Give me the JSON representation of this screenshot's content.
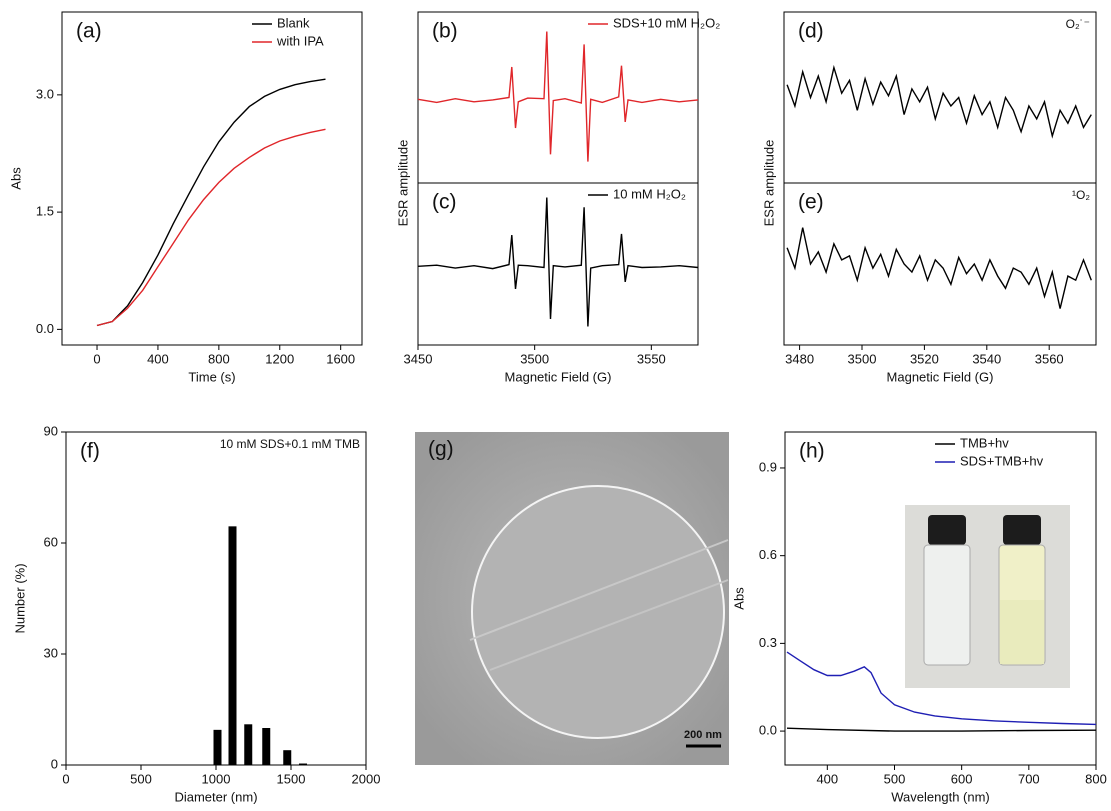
{
  "chart_data": [
    {
      "type": "line",
      "panel": "(a)",
      "xlabel": "Time (s)",
      "ylabel": "Abs",
      "xlim": [
        -230,
        1740
      ],
      "ylim": [
        -0.2,
        4.06
      ],
      "xticks": [
        0,
        400,
        800,
        1200,
        1600
      ],
      "yticks": [
        {
          "value": 0,
          "label": "0.0"
        },
        1.5,
        {
          "value": 3,
          "label": "3.0"
        }
      ],
      "legend": "upper right",
      "x": [
        0,
        100,
        200,
        300,
        400,
        500,
        600,
        700,
        800,
        900,
        1000,
        1100,
        1200,
        1300,
        1400,
        1500
      ],
      "series": [
        {
          "name": "Blank",
          "color": "#000000",
          "values": [
            0.05,
            0.1,
            0.3,
            0.6,
            0.95,
            1.35,
            1.72,
            2.08,
            2.4,
            2.65,
            2.85,
            2.98,
            3.07,
            3.13,
            3.17,
            3.2
          ]
        },
        {
          "name": "with IPA",
          "color": "#e0262a",
          "values": [
            0.05,
            0.1,
            0.27,
            0.5,
            0.8,
            1.1,
            1.4,
            1.66,
            1.88,
            2.06,
            2.2,
            2.32,
            2.41,
            2.47,
            2.52,
            2.56
          ]
        }
      ]
    },
    {
      "type": "line",
      "panel": "(b)",
      "ylabel": "ESR amplitude",
      "xlim": [
        3450,
        3570
      ],
      "ylim": [
        -1.35,
        1.45
      ],
      "legend": "upper right",
      "x": [
        3450,
        3458,
        3466,
        3474,
        3482,
        3489,
        3490.2,
        3491.8,
        3493,
        3497,
        3504,
        3505.2,
        3506.8,
        3508,
        3513,
        3520,
        3521.2,
        3522.8,
        3524,
        3529,
        3536,
        3537.2,
        3538.8,
        3540,
        3546,
        3554,
        3562,
        3570
      ],
      "series": [
        {
          "name": "SDS+10 mM H₂O₂",
          "color": "#e0262a",
          "values": [
            0.02,
            -0.03,
            0.03,
            -0.02,
            0.01,
            0.05,
            0.55,
            -0.45,
            -0.02,
            0.04,
            0.03,
            1.13,
            -0.88,
            0.0,
            0.03,
            -0.04,
            0.92,
            -1.0,
            0.02,
            -0.03,
            0.06,
            0.57,
            -0.35,
            0.01,
            -0.03,
            0.02,
            -0.02,
            0.01
          ]
        }
      ]
    },
    {
      "type": "line",
      "panel": "(c)",
      "xlabel": "Magnetic Field (G)",
      "xlim": [
        3450,
        3570
      ],
      "ylim": [
        -1.35,
        1.45
      ],
      "xticks": [
        3450,
        3500,
        3550
      ],
      "legend": "upper right",
      "x": [
        3450,
        3458,
        3466,
        3474,
        3482,
        3489,
        3490.2,
        3491.8,
        3493,
        3497,
        3504,
        3505.2,
        3506.8,
        3508,
        3513,
        3520,
        3521.2,
        3522.8,
        3524,
        3529,
        3536,
        3537.2,
        3538.8,
        3540,
        3546,
        3554,
        3562,
        3570
      ],
      "series": [
        {
          "name": "10 mM H₂O₂",
          "color": "#000000",
          "values": [
            0.01,
            0.03,
            -0.02,
            0.02,
            -0.03,
            0.04,
            0.55,
            -0.38,
            0.03,
            0.02,
            -0.01,
            1.2,
            -0.9,
            0.02,
            0.0,
            0.03,
            1.03,
            -1.03,
            -0.02,
            0.02,
            0.04,
            0.57,
            -0.26,
            0.02,
            -0.01,
            0.0,
            0.02,
            -0.01
          ]
        }
      ]
    },
    {
      "type": "line",
      "panel": "(d)",
      "ylabel": "ESR amplitude",
      "annotation": "O₂˙⁻",
      "xlim": [
        3475,
        3575
      ],
      "ylim": [
        -1,
        1
      ],
      "x": [
        3476,
        3478.5,
        3481,
        3483.5,
        3486,
        3488.5,
        3491,
        3493.5,
        3496,
        3498.5,
        3501,
        3503.5,
        3506,
        3508.5,
        3511,
        3513.5,
        3516,
        3518.5,
        3521,
        3523.5,
        3526,
        3528.5,
        3531,
        3533.5,
        3536,
        3538.5,
        3541,
        3543.5,
        3546,
        3548.5,
        3551,
        3553.5,
        3556,
        3558.5,
        3561,
        3563.5,
        3566,
        3568.5,
        3571,
        3573.5
      ],
      "series": [
        {
          "color": "#000000",
          "values": [
            0.15,
            -0.1,
            0.3,
            0.0,
            0.25,
            -0.05,
            0.35,
            0.05,
            0.2,
            -0.15,
            0.22,
            -0.08,
            0.18,
            0.02,
            0.25,
            -0.2,
            0.1,
            -0.05,
            0.12,
            -0.25,
            0.05,
            -0.1,
            0.0,
            -0.3,
            0.02,
            -0.2,
            -0.05,
            -0.35,
            0.0,
            -0.15,
            -0.4,
            -0.1,
            -0.25,
            -0.05,
            -0.45,
            -0.15,
            -0.3,
            -0.1,
            -0.35,
            -0.2
          ]
        }
      ]
    },
    {
      "type": "line",
      "panel": "(e)",
      "xlabel": "Magnetic Field (G)",
      "annotation": "¹O₂",
      "xlim": [
        3475,
        3575
      ],
      "ylim": [
        -1,
        1
      ],
      "xticks": [
        3480,
        3500,
        3520,
        3540,
        3560
      ],
      "x": [
        3476,
        3478.5,
        3481,
        3483.5,
        3486,
        3488.5,
        3491,
        3493.5,
        3496,
        3498.5,
        3501,
        3503.5,
        3506,
        3508.5,
        3511,
        3513.5,
        3516,
        3518.5,
        3521,
        3523.5,
        3526,
        3528.5,
        3531,
        3533.5,
        3536,
        3538.5,
        3541,
        3543.5,
        3546,
        3548.5,
        3551,
        3553.5,
        3556,
        3558.5,
        3561,
        3563.5,
        3566,
        3568.5,
        3571,
        3573.5
      ],
      "series": [
        {
          "color": "#000000",
          "values": [
            0.2,
            -0.05,
            0.45,
            0.0,
            0.15,
            -0.1,
            0.25,
            0.05,
            0.1,
            -0.2,
            0.2,
            -0.05,
            0.12,
            -0.15,
            0.18,
            0.0,
            -0.1,
            0.1,
            -0.2,
            0.05,
            -0.05,
            -0.25,
            0.08,
            -0.12,
            0.0,
            -0.2,
            0.05,
            -0.15,
            -0.3,
            -0.05,
            -0.1,
            -0.25,
            -0.05,
            -0.4,
            -0.1,
            -0.55,
            -0.15,
            -0.2,
            0.05,
            -0.2
          ]
        }
      ]
    },
    {
      "type": "bar",
      "panel": "(f)",
      "xlabel": "Diameter (nm)",
      "ylabel": "Number (%)",
      "annotation": "10 mM SDS+0.1 mM TMB",
      "xlim": [
        0,
        2000
      ],
      "ylim": [
        0,
        90
      ],
      "xticks": [
        0,
        500,
        1000,
        1500,
        2000
      ],
      "yticks": [
        0,
        30,
        60,
        90
      ],
      "color": "#000000",
      "x": [
        1010,
        1110,
        1215,
        1335,
        1475,
        1580
      ],
      "values": [
        9.5,
        64.5,
        11,
        10,
        4,
        0.4
      ]
    },
    {
      "type": "line",
      "panel": "(h)",
      "xlabel": "Wavelength (nm)",
      "ylabel": "Abs",
      "xlim": [
        337,
        800
      ],
      "ylim": [
        -0.116,
        1.023
      ],
      "xticks": [
        400,
        500,
        600,
        700,
        800
      ],
      "yticks": [
        {
          "value": 0,
          "label": "0.0"
        },
        0.3,
        0.6,
        0.9
      ],
      "legend": "upper center",
      "series": [
        {
          "name": "TMB+hv",
          "color": "#000000",
          "x": [
            340,
            400,
            500,
            600,
            700,
            800
          ],
          "values": [
            0.01,
            0.005,
            0.0,
            0.0,
            0.002,
            0.003
          ]
        },
        {
          "name": "SDS+TMB+hv",
          "color": "#1f1fb4",
          "x": [
            340,
            360,
            380,
            400,
            420,
            440,
            455,
            465,
            480,
            500,
            530,
            560,
            600,
            650,
            700,
            750,
            800
          ],
          "values": [
            0.27,
            0.24,
            0.21,
            0.19,
            0.19,
            0.205,
            0.22,
            0.2,
            0.13,
            0.09,
            0.065,
            0.052,
            0.042,
            0.035,
            0.03,
            0.026,
            0.023
          ]
        }
      ]
    }
  ],
  "image_panel": {
    "panel": "(g)",
    "scale_bar": "200 nm"
  }
}
